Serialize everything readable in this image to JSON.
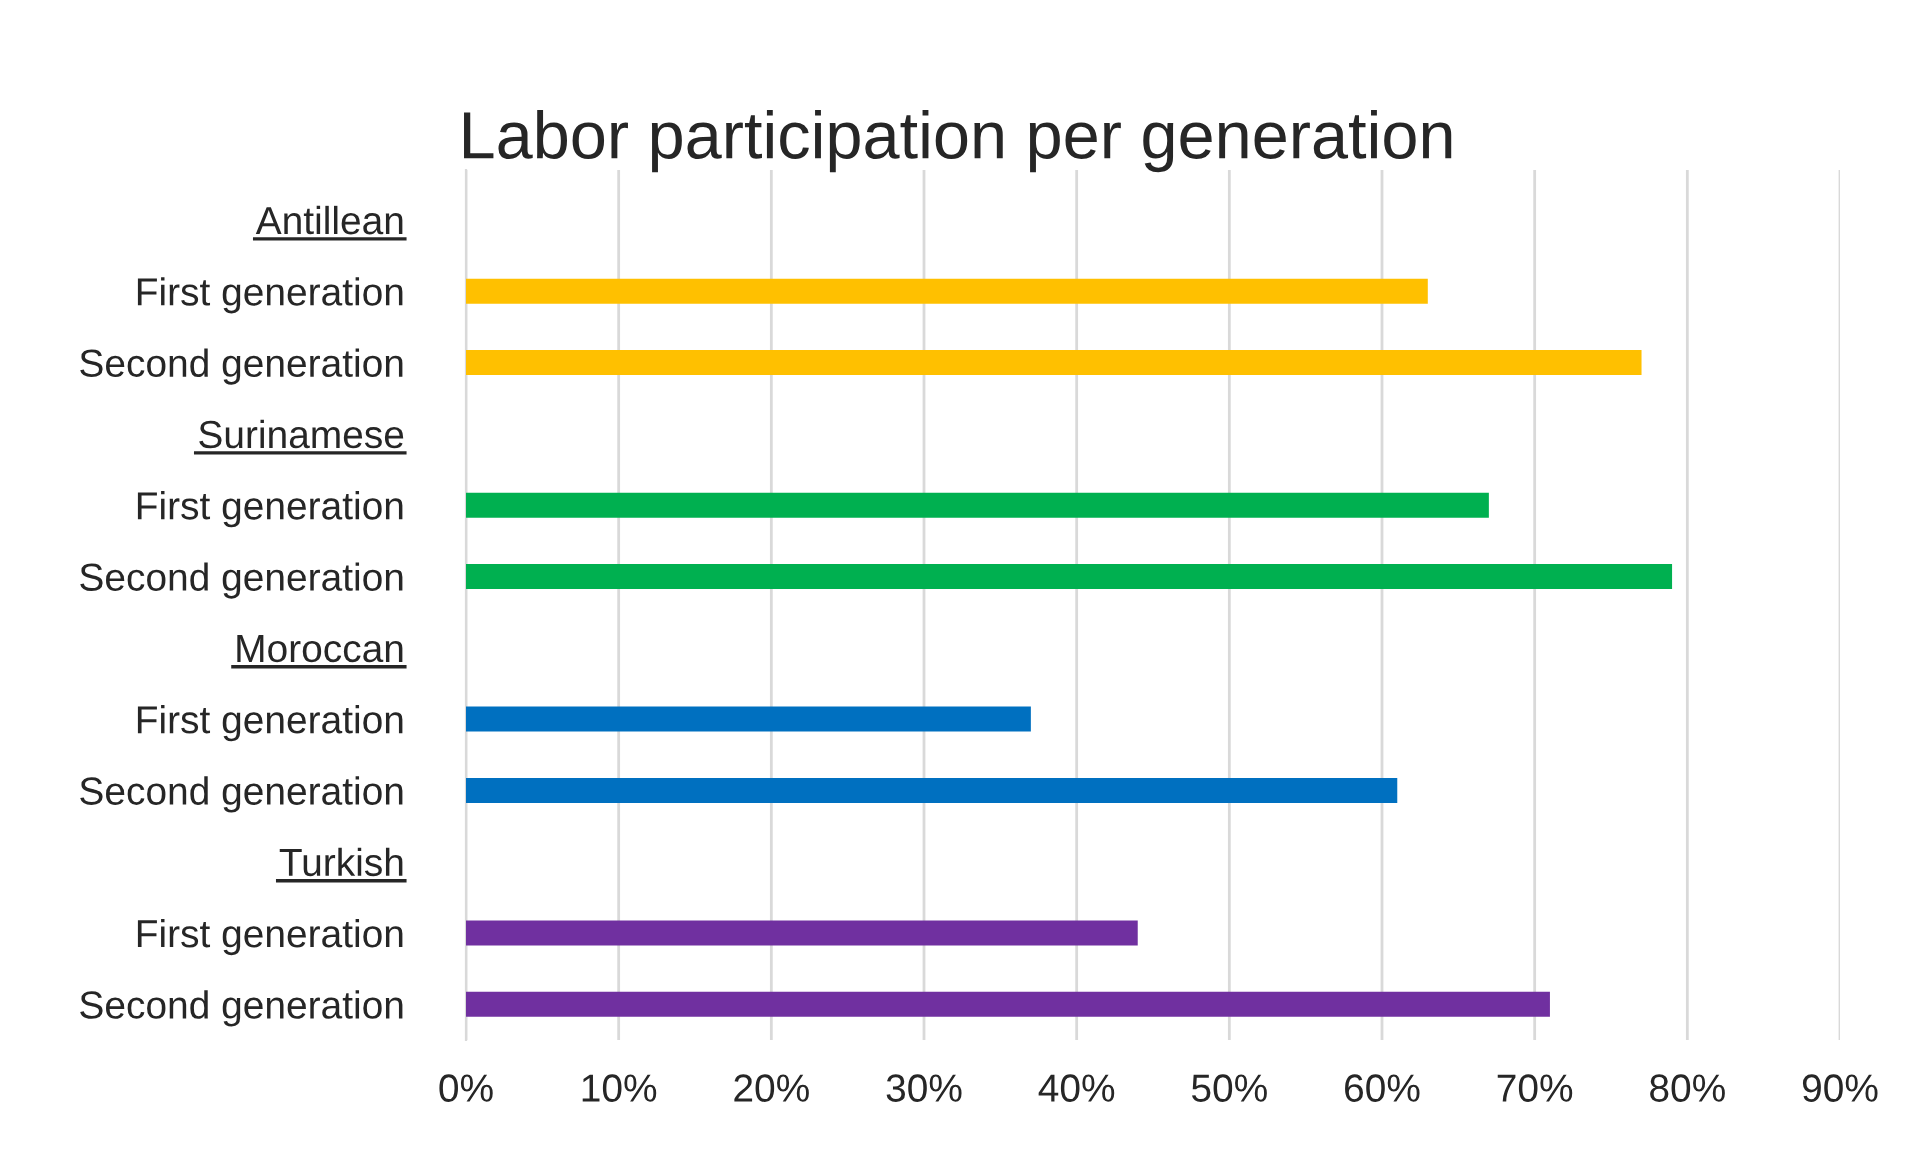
{
  "chart_data": {
    "type": "bar",
    "orientation": "horizontal",
    "title": "Labor participation per generation",
    "categories": [
      "Antillean",
      "First generation",
      "Second generation",
      "Surinamese",
      "First generation",
      "Second generation",
      "Moroccan",
      "First generation",
      "Second generation",
      "Turkish",
      "First generation",
      "Second generation"
    ],
    "values": [
      null,
      63,
      77,
      null,
      67,
      79,
      null,
      37,
      61,
      null,
      44,
      71
    ],
    "colors": [
      "#ffc000",
      "#ffc000",
      "#ffc000",
      "#00b050",
      "#00b050",
      "#00b050",
      "#0070c0",
      "#0070c0",
      "#0070c0",
      "#7030a0",
      "#7030a0",
      "#7030a0"
    ],
    "xlim": [
      0,
      90
    ],
    "xticks": [
      {
        "value": 0,
        "label": "0%"
      },
      {
        "value": 10,
        "label": "10%"
      },
      {
        "value": 20,
        "label": "20%"
      },
      {
        "value": 30,
        "label": "30%"
      },
      {
        "value": 40,
        "label": "40%"
      },
      {
        "value": 50,
        "label": "50%"
      },
      {
        "value": 60,
        "label": "60%"
      },
      {
        "value": 70,
        "label": "70%"
      },
      {
        "value": 80,
        "label": "80%"
      },
      {
        "value": 90,
        "label": "90%"
      }
    ],
    "grid": "x"
  }
}
